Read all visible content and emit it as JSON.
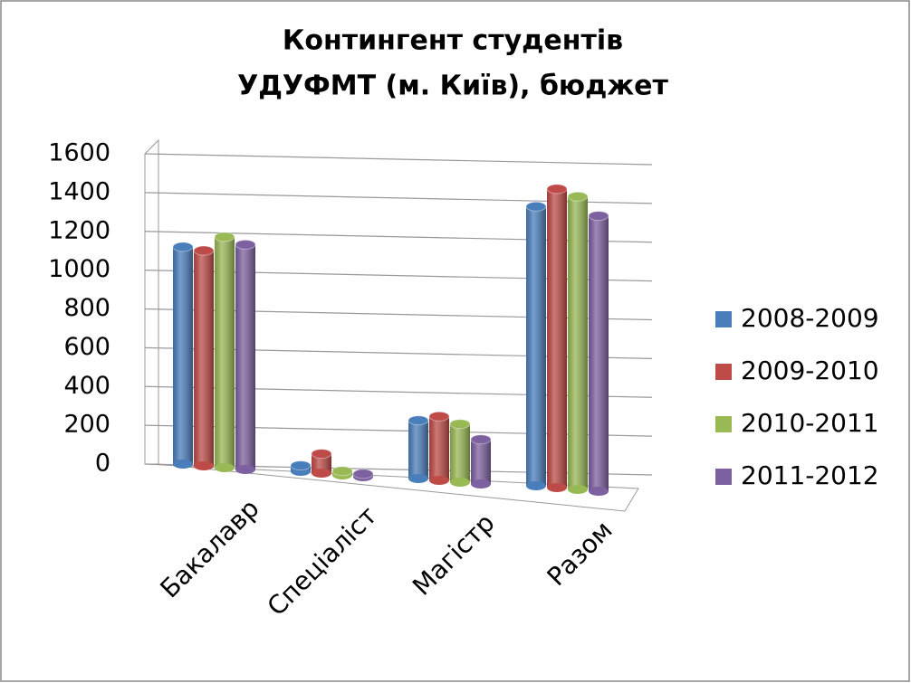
{
  "chart_data": {
    "type": "bar3d",
    "title": [
      "Контингент студентів",
      "УДУФМТ (м. Київ), бюджет"
    ],
    "categories": [
      "Бакалавр",
      "Спеціаліст",
      "Магістр",
      "Разом"
    ],
    "series": [
      {
        "name": "2008-2009",
        "color": "#4a7ebb",
        "values": [
          1120,
          30,
          300,
          1440
        ]
      },
      {
        "name": "2009-2010",
        "color": "#be4b48",
        "values": [
          1110,
          100,
          330,
          1540
        ]
      },
      {
        "name": "2010-2011",
        "color": "#98b954",
        "values": [
          1190,
          20,
          300,
          1510
        ]
      },
      {
        "name": "2011-2012",
        "color": "#7d60a0",
        "values": [
          1160,
          15,
          230,
          1420
        ]
      }
    ],
    "ylim": [
      0,
      1600
    ],
    "yticks": [
      0,
      200,
      400,
      600,
      800,
      1000,
      1200,
      1400,
      1600
    ],
    "grid": true,
    "legend": "right"
  }
}
